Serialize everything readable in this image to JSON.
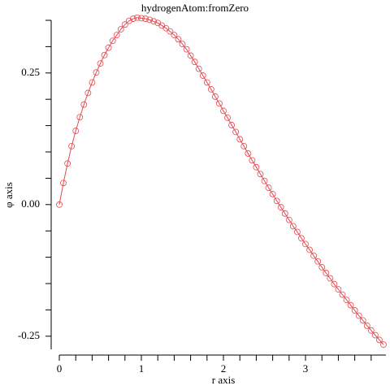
{
  "chart_data": {
    "type": "line",
    "title": "hydrogenAtom:fromZero",
    "x_label": "r axis",
    "y_label": "φ axis",
    "x": [
      0,
      0.05,
      0.1,
      0.15,
      0.2,
      0.25,
      0.3,
      0.35,
      0.4,
      0.45,
      0.5,
      0.55,
      0.6,
      0.65,
      0.7,
      0.75,
      0.8,
      0.85,
      0.9,
      0.95,
      1.0,
      1.05,
      1.1,
      1.15,
      1.2,
      1.25,
      1.3,
      1.35,
      1.4,
      1.45,
      1.5,
      1.55,
      1.6,
      1.65,
      1.7,
      1.75,
      1.8,
      1.85,
      1.9,
      1.95,
      2.0,
      2.05,
      2.1,
      2.15,
      2.2,
      2.25,
      2.3,
      2.35,
      2.4,
      2.45,
      2.5,
      2.55,
      2.6,
      2.65,
      2.7,
      2.75,
      2.8,
      2.85,
      2.9,
      2.95,
      3.0,
      3.05,
      3.1,
      3.15,
      3.2,
      3.25,
      3.3,
      3.35,
      3.4,
      3.45,
      3.5,
      3.55,
      3.6,
      3.65,
      3.7,
      3.75,
      3.8,
      3.85,
      3.9,
      3.95
    ],
    "series": [
      {
        "color": "#e8464e",
        "values": [
          0,
          0.041,
          0.078,
          0.111,
          0.14,
          0.166,
          0.19,
          0.212,
          0.232,
          0.251,
          0.268,
          0.284,
          0.298,
          0.311,
          0.322,
          0.333,
          0.342,
          0.349,
          0.353,
          0.355,
          0.354,
          0.353,
          0.351,
          0.348,
          0.345,
          0.34,
          0.335,
          0.329,
          0.322,
          0.314,
          0.305,
          0.295,
          0.283,
          0.271,
          0.258,
          0.245,
          0.232,
          0.219,
          0.205,
          0.192,
          0.178,
          0.165,
          0.151,
          0.138,
          0.124,
          0.111,
          0.097,
          0.084,
          0.071,
          0.058,
          0.045,
          0.032,
          0.02,
          0.007,
          -0.005,
          -0.017,
          -0.029,
          -0.041,
          -0.052,
          -0.064,
          -0.075,
          -0.086,
          -0.097,
          -0.108,
          -0.119,
          -0.13,
          -0.14,
          -0.151,
          -0.161,
          -0.171,
          -0.181,
          -0.191,
          -0.201,
          -0.211,
          -0.22,
          -0.23,
          -0.239,
          -0.248,
          -0.257,
          -0.266
        ]
      }
    ],
    "xlim": [
      0,
      3.98
    ],
    "xticks": [
      0,
      1,
      2,
      3
    ],
    "xminorticks": [
      0.2,
      0.4,
      0.6,
      0.8,
      1.2,
      1.4,
      1.6,
      1.8,
      2.2,
      2.4,
      2.6,
      2.8,
      3.2,
      3.4,
      3.6,
      3.8
    ],
    "ylim": [
      -0.275,
      0.35
    ],
    "yticks": [
      {
        "value": -0.25,
        "label": "-0.25"
      },
      {
        "value": 0,
        "label": "0.00"
      },
      {
        "value": 0.25,
        "label": "0.25"
      }
    ],
    "yminorticks": [
      -0.2,
      -0.15,
      -0.1,
      -0.05,
      0.05,
      0.1,
      0.15,
      0.2,
      0.3,
      0.35
    ],
    "marker": "open-circle"
  }
}
